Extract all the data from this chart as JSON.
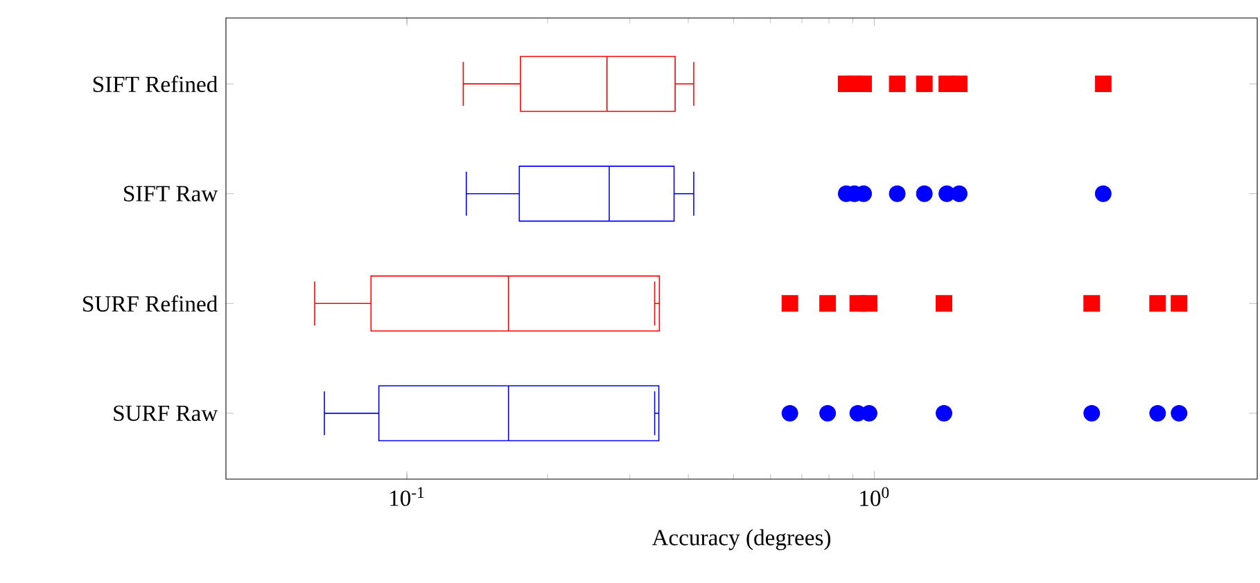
{
  "chart_data": {
    "type": "box",
    "orientation": "horizontal",
    "log": "x",
    "xlabel": "Accuracy (degrees)",
    "categories": [
      "SIFT Refined",
      "SIFT Raw",
      "SURF Refined",
      "SURF Raw"
    ],
    "xlim": [
      0.041,
      6.6
    ],
    "xticks": [
      {
        "value": 0.1,
        "label": "10$^{-1}$"
      },
      {
        "value": 1,
        "label": "10$^{0}$"
      }
    ],
    "series": [
      {
        "color": "#ff0000",
        "marker": "square",
        "boxes": [
          {
            "low": 0.132,
            "q1": 0.175,
            "median": 0.268,
            "q3": 0.375,
            "high": 0.411,
            "outliers": [
              0.871,
              0.907,
              0.949,
              1.12,
              1.28,
              1.43,
              1.52,
              3.09
            ]
          },
          null,
          {
            "low": 0.0635,
            "q1": 0.0838,
            "median": 0.165,
            "q3": 0.347,
            "high": 0.339,
            "outliers": [
              0.66,
              0.795,
              0.922,
              0.975,
              1.41,
              2.92,
              4.04,
              4.49
            ]
          },
          null
        ]
      },
      {
        "color": "#0000ff",
        "marker": "circle",
        "boxes": [
          null,
          {
            "low": 0.134,
            "q1": 0.174,
            "median": 0.271,
            "q3": 0.373,
            "high": 0.411,
            "outliers": [
              0.871,
              0.907,
              0.949,
              1.12,
              1.28,
              1.43,
              1.52,
              3.09
            ]
          },
          null,
          {
            "low": 0.0666,
            "q1": 0.0871,
            "median": 0.165,
            "q3": 0.346,
            "high": 0.339,
            "outliers": [
              0.66,
              0.795,
              0.922,
              0.975,
              1.41,
              2.92,
              4.04,
              4.49
            ]
          }
        ]
      }
    ]
  }
}
